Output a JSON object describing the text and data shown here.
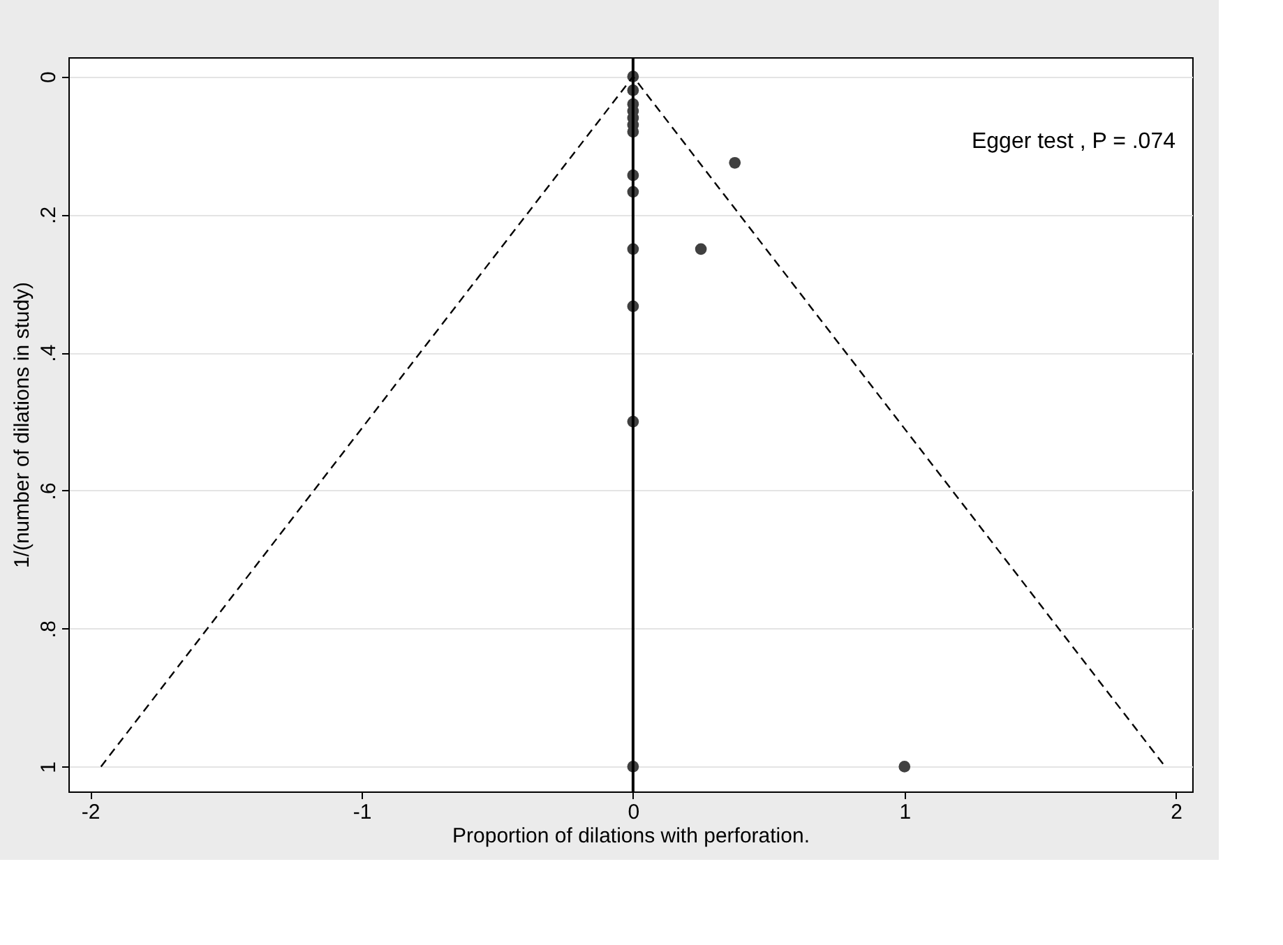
{
  "chart_data": {
    "type": "scatter",
    "xlabel": "Proportion of dilations with perforation.",
    "ylabel": "1/(number of dilations in study)",
    "xlim": [
      -2.08,
      2.06
    ],
    "xticks": [
      -2,
      -1,
      0,
      1,
      2
    ],
    "ylim": [
      1.036,
      -0.028
    ],
    "yticks": [
      {
        "value": 0,
        "label": "0"
      },
      {
        "value": 0.2,
        "label": ".2"
      },
      {
        "value": 0.4,
        "label": ".4"
      },
      {
        "value": 0.6,
        "label": ".6"
      },
      {
        "value": 0.8,
        "label": ".8"
      },
      {
        "value": 1,
        "label": "1"
      }
    ],
    "grid": "y",
    "marker": "circle",
    "series": [
      {
        "color": "#404040",
        "x": [
          0,
          0,
          0,
          0,
          0,
          0,
          0,
          0,
          0,
          0,
          0,
          0,
          0,
          0.375,
          0.25,
          1
        ],
        "values": [
          0,
          0.02,
          0.04,
          0.05,
          0.06,
          0.07,
          0.08,
          0.143,
          0.167,
          0.25,
          0.333,
          0.5,
          1,
          0.125,
          0.25,
          1
        ]
      },
      {
        "type": "line",
        "marker": "none",
        "color": "#000000",
        "line_style": "dashed",
        "x": [
          -1.96,
          0,
          1.96
        ],
        "values": [
          1,
          0,
          1
        ]
      }
    ],
    "ref_lines": [
      {
        "axis": "x",
        "value": 0,
        "color": "#000000",
        "line_style": "solid"
      }
    ],
    "annotations": [
      "Egger test , P = .074"
    ]
  }
}
